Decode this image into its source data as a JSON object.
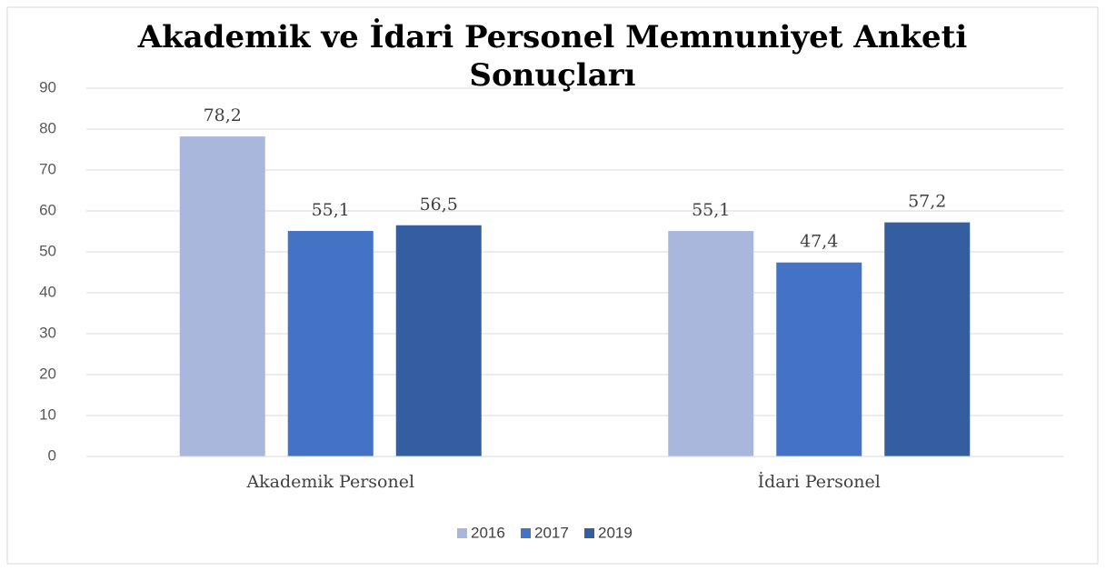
{
  "chart_data": {
    "type": "bar",
    "title": "Akademik ve İdari Personel Memnuniyet Anketi Sonuçları",
    "categories": [
      "Akademik Personel",
      "İdari Personel"
    ],
    "series": [
      {
        "name": "2016",
        "color": "#a9b7dc",
        "values": [
          78.2,
          55.1
        ],
        "value_labels": [
          "78,2",
          "55,1"
        ]
      },
      {
        "name": "2017",
        "color": "#4472c4",
        "values": [
          55.1,
          47.4
        ],
        "value_labels": [
          "55,1",
          "47,4"
        ]
      },
      {
        "name": "2019",
        "color": "#355ea1",
        "values": [
          56.5,
          57.2
        ],
        "value_labels": [
          "56,5",
          "57,2"
        ]
      }
    ],
    "ylim": [
      0,
      90
    ],
    "yticks": [
      0,
      10,
      20,
      30,
      40,
      50,
      60,
      70,
      80,
      90
    ],
    "grid": true,
    "legend": "bottom"
  }
}
